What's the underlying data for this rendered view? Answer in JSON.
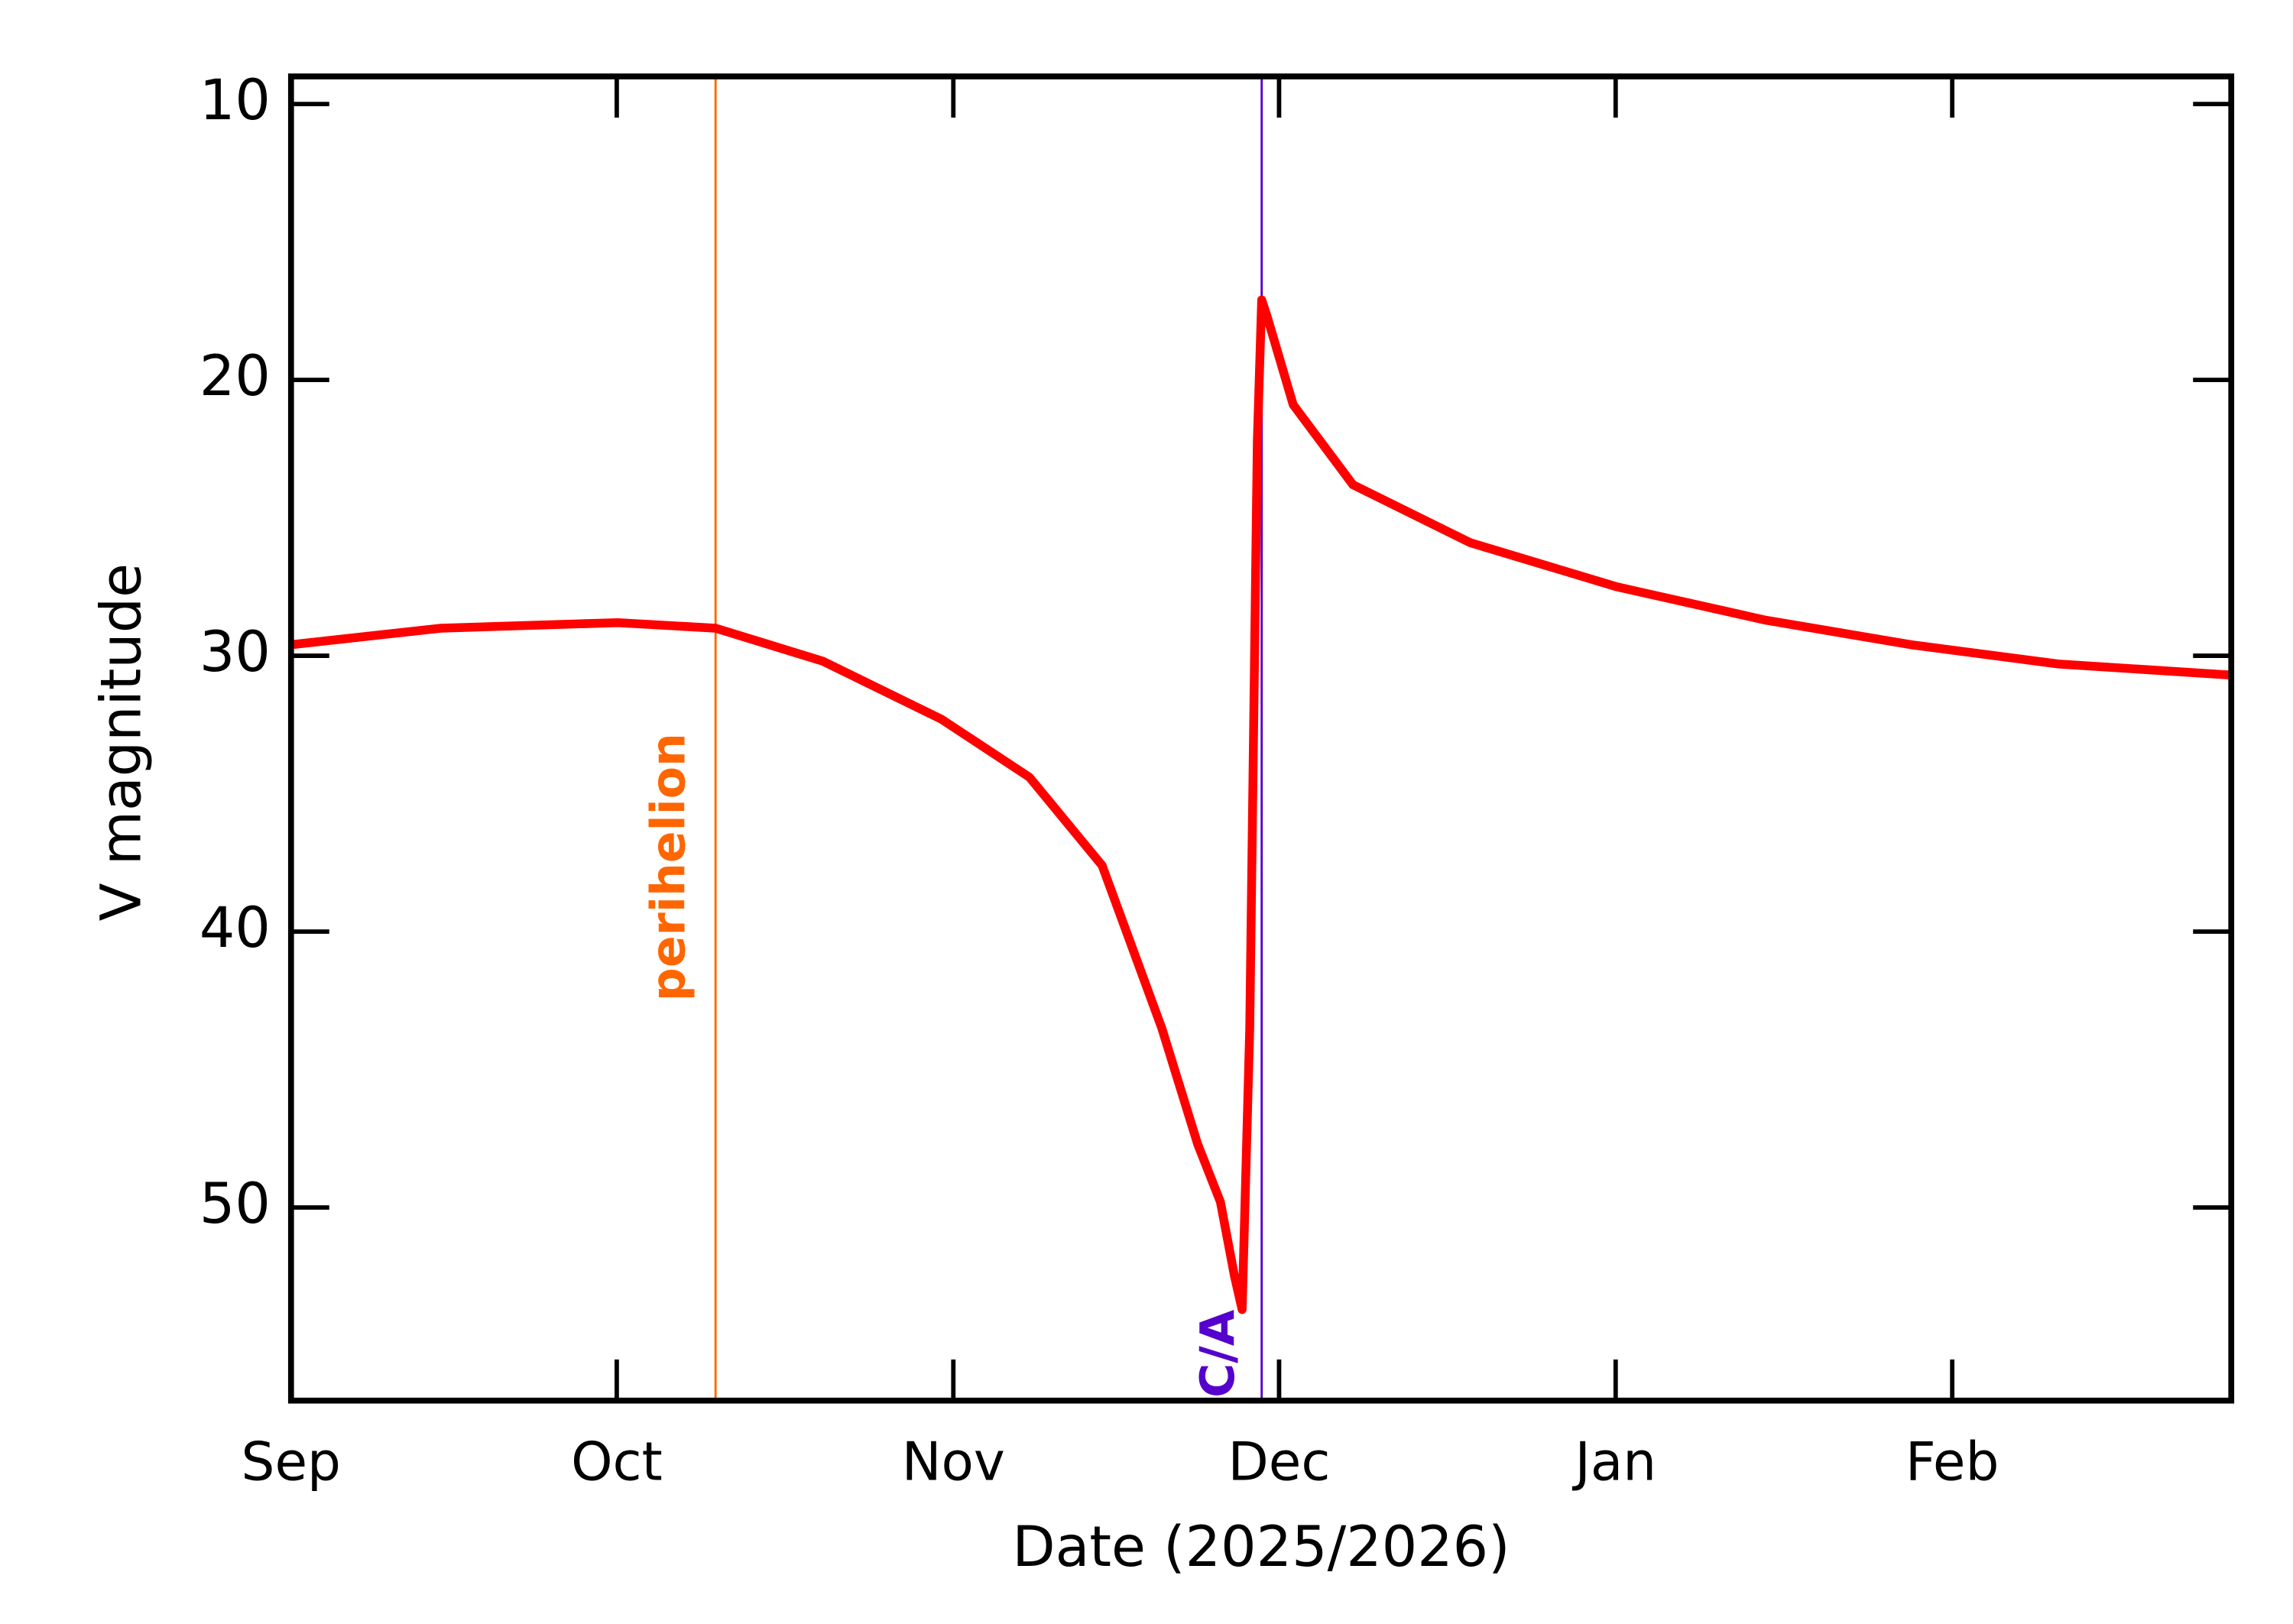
{
  "chart_data": {
    "type": "line",
    "x_label": "Date (2025/2026)",
    "y_label": "V magnitude",
    "xlim": [
      0,
      178.7
    ],
    "ylim": [
      57,
      9
    ],
    "xticks": [
      {
        "value": 0,
        "label": "Sep"
      },
      {
        "value": 30,
        "label": "Oct"
      },
      {
        "value": 61,
        "label": "Nov"
      },
      {
        "value": 91,
        "label": "Dec"
      },
      {
        "value": 122,
        "label": "Jan"
      },
      {
        "value": 153,
        "label": "Feb"
      }
    ],
    "yticks": [
      10,
      20,
      30,
      40,
      50
    ],
    "x": [
      0,
      13.8,
      30.1,
      39.1,
      49.0,
      59.9,
      68.0,
      74.7,
      80.2,
      83.5,
      85.6,
      86.9,
      87.6,
      88.3,
      89.0,
      89.4,
      89.9,
      92.3,
      97.8,
      108.6,
      122.1,
      135.7,
      149.2,
      162.8,
      178.7
    ],
    "series": [
      {
        "color": "#ff0000",
        "values": [
          29.6,
          29.0,
          28.8,
          29.0,
          30.2,
          32.3,
          34.4,
          37.6,
          43.5,
          47.7,
          49.8,
          52.5,
          53.7,
          43.5,
          22.2,
          17.1,
          17.7,
          20.9,
          23.8,
          25.9,
          27.5,
          28.7,
          29.6,
          30.3,
          30.7
        ]
      }
    ],
    "markers": [
      {
        "label": "perihelion",
        "x": 39.1,
        "color": "#ff6600"
      },
      {
        "label": "C/A",
        "x": 89.4,
        "color": "#5500cc"
      }
    ]
  }
}
